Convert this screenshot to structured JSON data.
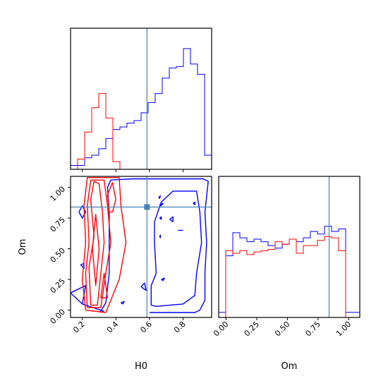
{
  "chart_data": {
    "type": "corner",
    "params": [
      "H0",
      "Om"
    ],
    "xlabel_left": "H0",
    "xlabel_right": "Om",
    "ylabel_left": "Om",
    "truth": {
      "H0": 0.585,
      "Om": 0.84
    },
    "colors": {
      "series_a": "#0000ff",
      "series_b": "#ff0000",
      "truth": "#4682b4"
    },
    "h0_axis": {
      "range": [
        0.13,
        0.97
      ],
      "ticks": [
        0.2,
        0.4,
        0.6,
        0.8
      ],
      "tick_labels": [
        "0.2",
        "0.4",
        "0.6",
        "0.8"
      ]
    },
    "om_axis": {
      "range": [
        -0.06,
        1.09
      ],
      "ticks": [
        0.0,
        0.25,
        0.5,
        0.75,
        1.0
      ],
      "tick_labels": [
        "0.00",
        "0.25",
        "0.50",
        "0.75",
        "1.00"
      ]
    },
    "h0_hist": {
      "edges": [
        0.13,
        0.172,
        0.214,
        0.256,
        0.298,
        0.34,
        0.382,
        0.424,
        0.466,
        0.508,
        0.55,
        0.592,
        0.634,
        0.676,
        0.718,
        0.76,
        0.802,
        0.844,
        0.886,
        0.928,
        0.97
      ],
      "series": [
        {
          "color": "#0000ff",
          "values": [
            0.03,
            0.03,
            0.09,
            0.11,
            0.16,
            0.24,
            0.31,
            0.33,
            0.36,
            0.38,
            0.44,
            0.52,
            0.59,
            0.71,
            0.79,
            0.8,
            0.94,
            0.82,
            0.74,
            0.11
          ]
        },
        {
          "color": "#ff0000",
          "values": [
            0,
            0.08,
            0.29,
            0.48,
            0.59,
            0.4,
            0.06,
            0,
            0,
            0,
            0,
            0,
            0,
            0,
            0,
            0,
            0,
            0,
            0,
            0
          ]
        }
      ]
    },
    "om_hist": {
      "edges": [
        -0.06,
        -0.0025,
        0.055,
        0.1125,
        0.17,
        0.2275,
        0.285,
        0.3425,
        0.4,
        0.4575,
        0.515,
        0.5725,
        0.63,
        0.6875,
        0.745,
        0.8025,
        0.86,
        0.9175,
        0.975,
        1.0325,
        1.09
      ],
      "series": [
        {
          "color": "#0000ff",
          "values": [
            0.04,
            0.48,
            0.66,
            0.62,
            0.59,
            0.61,
            0.59,
            0.56,
            0.54,
            0.57,
            0.61,
            0.59,
            0.62,
            0.67,
            0.65,
            0.71,
            0.67,
            0.69,
            0.04,
            0.04
          ]
        },
        {
          "color": "#ff0000",
          "values": [
            0,
            0.52,
            0.5,
            0.52,
            0.49,
            0.51,
            0.52,
            0.53,
            0.59,
            0.57,
            0.61,
            0.5,
            0.56,
            0.56,
            0.6,
            0.63,
            0.62,
            0.52,
            0,
            0
          ]
        }
      ]
    },
    "contours": {
      "series_a": {
        "color": "#0000ff",
        "paths": [
          [
            [
              0.305,
              -0.02
            ],
            [
              0.34,
              0.06
            ],
            [
              0.36,
              0.3
            ],
            [
              0.36,
              0.55
            ],
            [
              0.36,
              0.8
            ],
            [
              0.35,
              1.0
            ],
            [
              0.37,
              1.06
            ],
            [
              0.5,
              1.07
            ],
            [
              0.66,
              1.07
            ],
            [
              0.92,
              1.07
            ],
            [
              0.95,
              1.05
            ],
            [
              0.93,
              0.8
            ],
            [
              0.94,
              0.55
            ],
            [
              0.93,
              0.3
            ],
            [
              0.93,
              0.08
            ],
            [
              0.9,
              0.0
            ],
            [
              0.87,
              -0.02
            ],
            [
              0.7,
              -0.02
            ],
            [
              0.6,
              -0.02
            ]
          ],
          [
            [
              0.64,
              0.03
            ],
            [
              0.61,
              0.04
            ],
            [
              0.61,
              0.2
            ],
            [
              0.64,
              0.3
            ],
            [
              0.63,
              0.55
            ],
            [
              0.63,
              0.72
            ],
            [
              0.67,
              0.88
            ],
            [
              0.74,
              0.97
            ],
            [
              0.88,
              0.97
            ],
            [
              0.9,
              0.8
            ],
            [
              0.91,
              0.55
            ],
            [
              0.88,
              0.3
            ],
            [
              0.87,
              0.12
            ],
            [
              0.8,
              0.05
            ],
            [
              0.72,
              0.04
            ],
            [
              0.64,
              0.03
            ]
          ],
          [
            [
              0.18,
              0.8
            ],
            [
              0.2,
              0.85
            ],
            [
              0.22,
              0.8
            ],
            [
              0.2,
              0.75
            ],
            [
              0.18,
              0.8
            ]
          ],
          [
            [
              0.19,
              0.37
            ],
            [
              0.21,
              0.38
            ],
            [
              0.21,
              0.34
            ],
            [
              0.19,
              0.37
            ]
          ],
          [
            [
              0.55,
              0.19
            ],
            [
              0.57,
              0.22
            ],
            [
              0.58,
              0.16
            ],
            [
              0.55,
              0.19
            ]
          ],
          [
            [
              0.43,
              0.06
            ],
            [
              0.45,
              0.07
            ],
            [
              0.44,
              0.05
            ],
            [
              0.43,
              0.06
            ]
          ],
          [
            [
              0.655,
              0.92
            ],
            [
              0.665,
              0.93
            ],
            [
              0.66,
              0.91
            ],
            [
              0.655,
              0.92
            ]
          ],
          [
            [
              0.66,
              0.86
            ],
            [
              0.68,
              0.87
            ],
            [
              0.67,
              0.85
            ],
            [
              0.66,
              0.86
            ]
          ],
          [
            [
              0.72,
              0.74
            ],
            [
              0.74,
              0.76
            ],
            [
              0.74,
              0.72
            ],
            [
              0.72,
              0.74
            ]
          ],
          [
            [
              0.86,
              0.87
            ],
            [
              0.87,
              0.88
            ],
            [
              0.87,
              0.86
            ],
            [
              0.86,
              0.87
            ]
          ],
          [
            [
              0.67,
              0.25
            ],
            [
              0.69,
              0.26
            ],
            [
              0.68,
              0.24
            ],
            [
              0.67,
              0.25
            ]
          ],
          [
            [
              0.66,
              0.75
            ],
            [
              0.67,
              0.76
            ],
            [
              0.67,
              0.74
            ],
            [
              0.66,
              0.75
            ]
          ],
          [
            [
              0.66,
              0.6
            ],
            [
              0.665,
              0.61
            ],
            [
              0.665,
              0.59
            ],
            [
              0.66,
              0.6
            ]
          ],
          [
            [
              0.77,
              0.65
            ],
            [
              0.8,
              0.65
            ]
          ],
          [
            [
              0.13,
              0.14
            ],
            [
              0.2,
              0.05
            ],
            [
              0.22,
              0.2
            ],
            [
              0.13,
              0.14
            ]
          ],
          [
            [
              0.2,
              0.05
            ],
            [
              0.33,
              -0.01
            ]
          ]
        ]
      },
      "series_b": {
        "color": "#ff0000",
        "paths": [
          [
            [
              0.22,
              0.0
            ],
            [
              0.2,
              0.25
            ],
            [
              0.22,
              0.55
            ],
            [
              0.21,
              0.85
            ],
            [
              0.23,
              1.08
            ],
            [
              0.42,
              1.08
            ],
            [
              0.43,
              0.85
            ],
            [
              0.46,
              0.55
            ],
            [
              0.42,
              0.25
            ],
            [
              0.34,
              -0.02
            ],
            [
              0.22,
              0.0
            ]
          ],
          [
            [
              0.23,
              0.02
            ],
            [
              0.22,
              0.3
            ],
            [
              0.24,
              0.55
            ],
            [
              0.23,
              0.85
            ],
            [
              0.25,
              1.06
            ],
            [
              0.33,
              1.06
            ],
            [
              0.35,
              0.85
            ],
            [
              0.37,
              0.55
            ],
            [
              0.34,
              0.3
            ],
            [
              0.31,
              0.02
            ],
            [
              0.23,
              0.02
            ]
          ],
          [
            [
              0.25,
              0.04
            ],
            [
              0.24,
              0.35
            ],
            [
              0.27,
              0.6
            ],
            [
              0.25,
              0.9
            ],
            [
              0.27,
              1.05
            ],
            [
              0.3,
              1.03
            ],
            [
              0.32,
              0.8
            ],
            [
              0.33,
              0.55
            ],
            [
              0.31,
              0.3
            ],
            [
              0.29,
              0.04
            ],
            [
              0.25,
              0.04
            ]
          ],
          [
            [
              0.26,
              0.5
            ],
            [
              0.28,
              0.78
            ],
            [
              0.3,
              0.5
            ],
            [
              0.28,
              0.2
            ],
            [
              0.26,
              0.5
            ]
          ],
          [
            [
              0.36,
              0.8
            ],
            [
              0.35,
              0.94
            ],
            [
              0.38,
              1.04
            ],
            [
              0.4,
              0.9
            ],
            [
              0.38,
              0.8
            ],
            [
              0.36,
              0.8
            ]
          ],
          [
            [
              0.31,
              0.1
            ],
            [
              0.33,
              0.3
            ],
            [
              0.35,
              0.1
            ],
            [
              0.31,
              0.1
            ]
          ]
        ]
      }
    }
  }
}
